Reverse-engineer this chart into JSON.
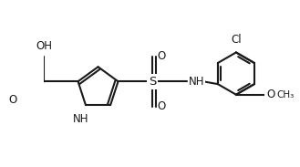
{
  "bg_color": "#ffffff",
  "line_color": "#1a1a1a",
  "text_color": "#1a1a1a",
  "bond_lw": 1.5,
  "font_size": 8.5,
  "figsize": [
    3.29,
    1.83
  ],
  "dpi": 100,
  "xlim": [
    -0.05,
    3.3
  ],
  "ylim": [
    -0.1,
    1.85
  ],
  "aspect": "equal"
}
